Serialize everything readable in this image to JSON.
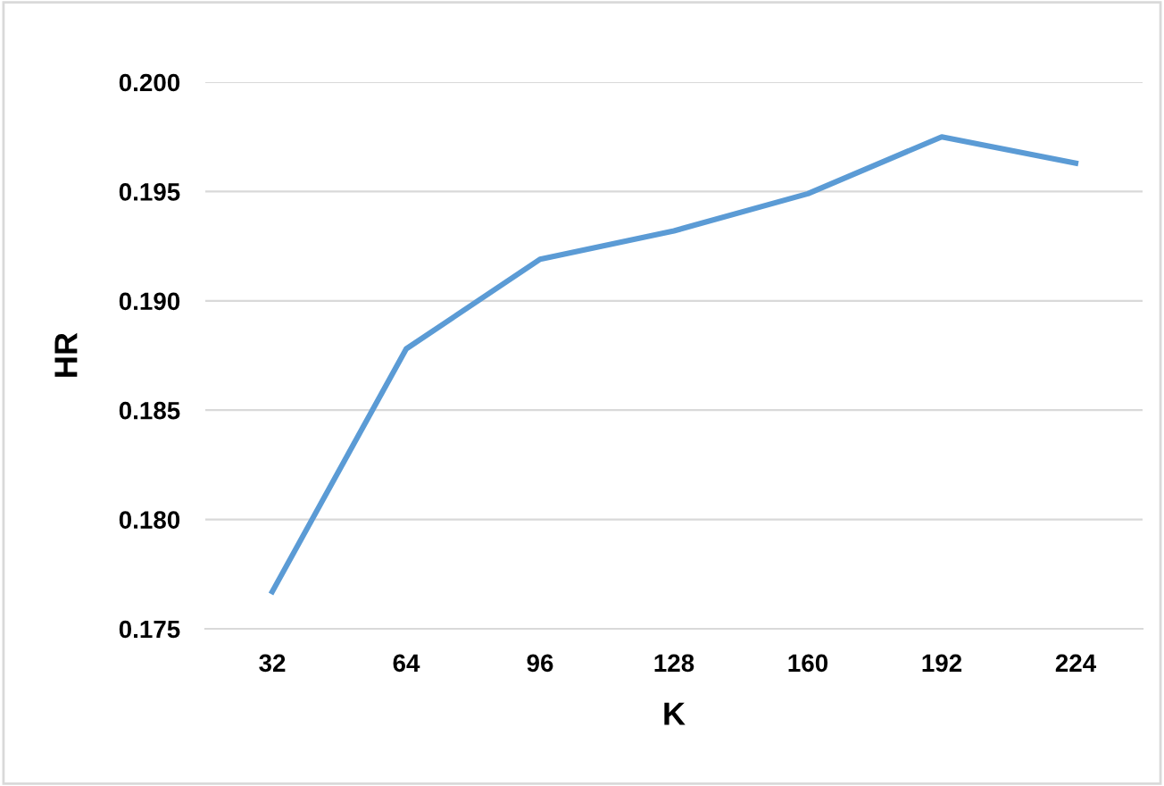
{
  "chart_data": {
    "type": "line",
    "xlabel": "K",
    "ylabel": "HR",
    "categories": [
      "32",
      "64",
      "96",
      "128",
      "160",
      "192",
      "224"
    ],
    "series": [
      {
        "color": "#5b9bd5",
        "values": [
          0.1767,
          0.1878,
          0.1919,
          0.1932,
          0.1949,
          0.1975,
          0.1963
        ]
      }
    ],
    "ylim": [
      0.175,
      0.2
    ],
    "yticks": [
      {
        "value": 0.175,
        "label": "0.175"
      },
      {
        "value": 0.18,
        "label": "0.180"
      },
      {
        "value": 0.185,
        "label": "0.185"
      },
      {
        "value": 0.19,
        "label": "0.190"
      },
      {
        "value": 0.195,
        "label": "0.195"
      },
      {
        "value": 0.2,
        "label": "0.200"
      }
    ],
    "grid": "y",
    "legend": false,
    "marker": "none",
    "line_style": "solid"
  }
}
